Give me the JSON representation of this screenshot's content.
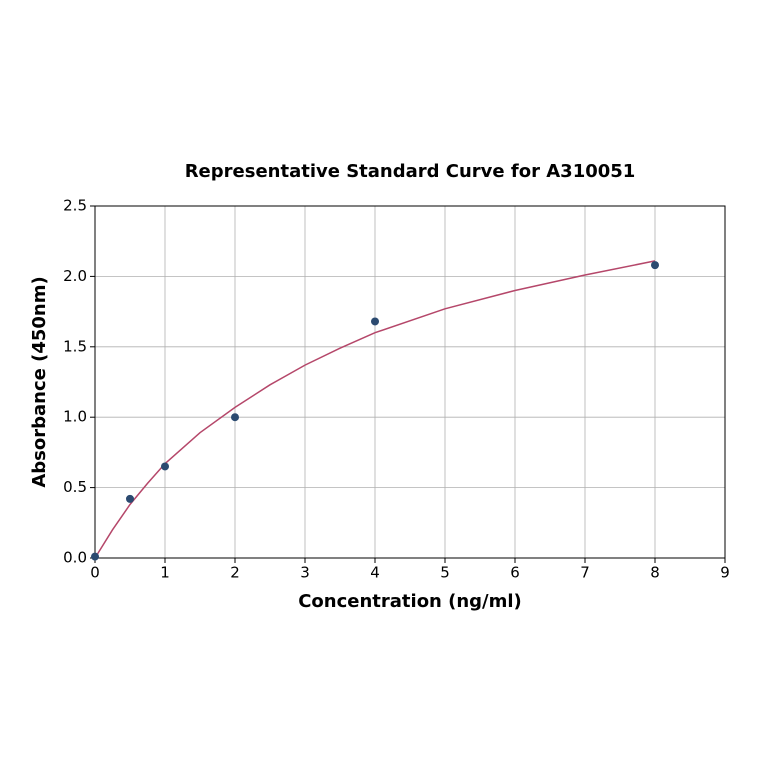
{
  "chart_data": {
    "type": "scatter",
    "title": "Representative Standard Curve for A310051",
    "xlabel": "Concentration (ng/ml)",
    "ylabel": "Absorbance (450nm)",
    "xlim": [
      0,
      9
    ],
    "xticks": [
      0,
      1,
      2,
      3,
      4,
      5,
      6,
      7,
      8,
      9
    ],
    "ylim": [
      0,
      2.5
    ],
    "yticks": [
      {
        "value": 0,
        "label": "0.0"
      },
      {
        "value": 0.5,
        "label": "0.5"
      },
      {
        "value": 1,
        "label": "1.0"
      },
      {
        "value": 1.5,
        "label": "1.5"
      },
      {
        "value": 2,
        "label": "2.0"
      },
      {
        "value": 2.5,
        "label": "2.5"
      }
    ],
    "grid": true,
    "series": [
      {
        "type": "scatter",
        "color": "#2b4a70",
        "x": [
          0,
          0.5,
          1,
          2,
          4,
          8
        ],
        "values": [
          0.01,
          0.42,
          0.65,
          1.0,
          1.68,
          2.08
        ]
      },
      {
        "type": "line",
        "color": "#b5476a",
        "x": [
          0,
          0.25,
          0.5,
          0.75,
          1,
          1.5,
          2,
          2.5,
          3,
          3.5,
          4,
          5,
          6,
          7,
          8
        ],
        "values": [
          0,
          0.2,
          0.38,
          0.53,
          0.67,
          0.89,
          1.07,
          1.23,
          1.37,
          1.49,
          1.6,
          1.77,
          1.9,
          2.01,
          2.11
        ]
      }
    ]
  }
}
